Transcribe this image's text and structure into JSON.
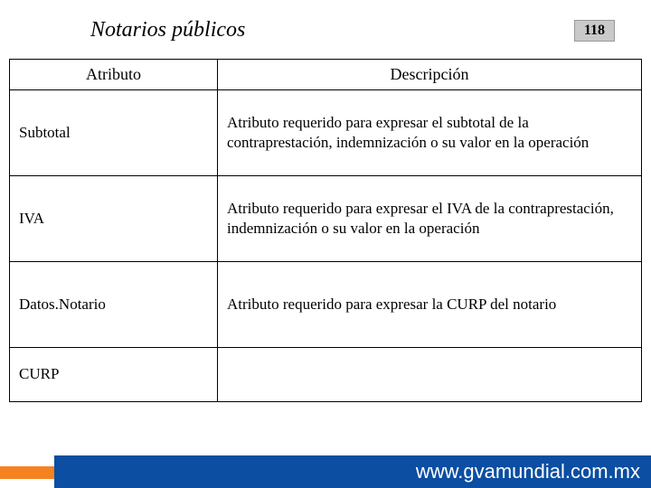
{
  "page": {
    "title": "Notarios públicos",
    "number": "118"
  },
  "table": {
    "columns": [
      "Atributo",
      "Descripción"
    ],
    "rows": [
      {
        "attr": "Subtotal",
        "desc": "Atributo requerido para expresar el subtotal de la contraprestación, indemnización o su valor en la operación"
      },
      {
        "attr": "IVA",
        "desc": "Atributo requerido para expresar el IVA de la contraprestación, indemnización o su valor en la operación"
      },
      {
        "attr": "Datos.Notario",
        "desc": "Atributo requerido para expresar la CURP del notario"
      },
      {
        "attr": "CURP",
        "desc": ""
      }
    ]
  },
  "footer": {
    "url": "www.gvamundial.com.mx",
    "orange": "#f58220",
    "blue": "#0b4ea2"
  }
}
